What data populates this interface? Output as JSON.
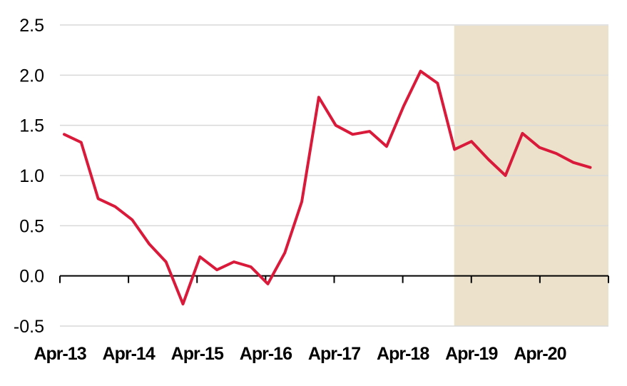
{
  "chart_data": {
    "type": "line",
    "title": "",
    "xlabel": "",
    "ylabel": "",
    "ylim": [
      -0.5,
      2.5
    ],
    "yticks": [
      "-0.5",
      "0.0",
      "0.5",
      "1.0",
      "1.5",
      "2.0",
      "2.5"
    ],
    "x_tick_labels": [
      "Apr-13",
      "Apr-14",
      "Apr-15",
      "Apr-16",
      "Apr-17",
      "Apr-18",
      "Apr-19",
      "Apr-20"
    ],
    "grid": "horizontal",
    "forecast_shading": {
      "from_x": "Jan-19",
      "color": "#ECE2CB"
    },
    "line_color": "#DA1A3A",
    "series": [
      {
        "x": [
          "Apr-13",
          "Jul-13",
          "Oct-13",
          "Jan-14",
          "Apr-14",
          "Jul-14",
          "Oct-14",
          "Jan-15",
          "Apr-15",
          "Jul-15",
          "Oct-15",
          "Jan-16",
          "Apr-16",
          "Jul-16",
          "Oct-16",
          "Jan-17",
          "Apr-17",
          "Jul-17",
          "Oct-17",
          "Jan-18",
          "Apr-18",
          "Jul-18",
          "Oct-18",
          "Jan-19",
          "Apr-19",
          "Jul-19",
          "Oct-19",
          "Jan-20",
          "Apr-20",
          "Jul-20",
          "Oct-20",
          "Jan-21"
        ],
        "values": [
          1.41,
          1.33,
          0.77,
          0.69,
          0.56,
          0.32,
          0.14,
          -0.28,
          0.19,
          0.06,
          0.14,
          0.09,
          -0.08,
          0.23,
          0.74,
          1.78,
          1.5,
          1.41,
          1.44,
          1.29,
          1.69,
          2.04,
          1.92,
          1.26,
          1.34,
          1.16,
          1.0,
          1.42,
          1.28,
          1.22,
          1.13,
          1.08
        ]
      }
    ]
  }
}
